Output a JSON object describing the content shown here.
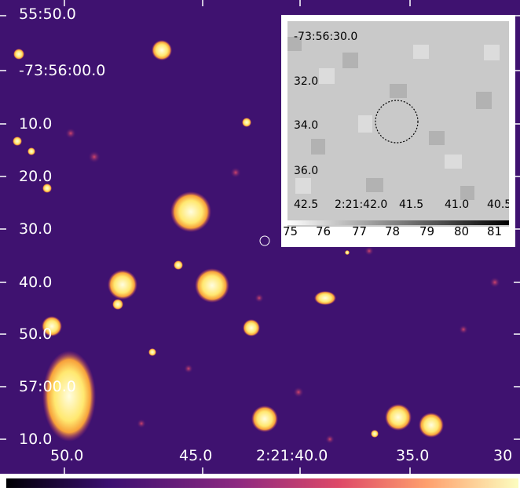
{
  "main_image": {
    "dec_labels": [
      "55:50.0",
      "-73:56:00.0",
      "10.0",
      "20.0",
      "30.0",
      "40.0",
      "50.0",
      "57:00.0",
      "10.0"
    ],
    "ra_labels": [
      "50.0",
      "45.0",
      "2:21:40.0",
      "35.0",
      "30"
    ]
  },
  "inset": {
    "dec_labels": [
      "-73:56:30.0",
      "32.0",
      "34.0",
      "36.0"
    ],
    "ra_labels": [
      "42.5",
      "2:21:42.0",
      "41.5",
      "41.0",
      "40.5"
    ],
    "colorbar_labels": [
      "75",
      "76",
      "77",
      "78",
      "79",
      "80",
      "81"
    ]
  },
  "colors": {
    "background": "#3f1270",
    "star": "#fff8b0",
    "inset_gray": "#c8c8c8"
  }
}
